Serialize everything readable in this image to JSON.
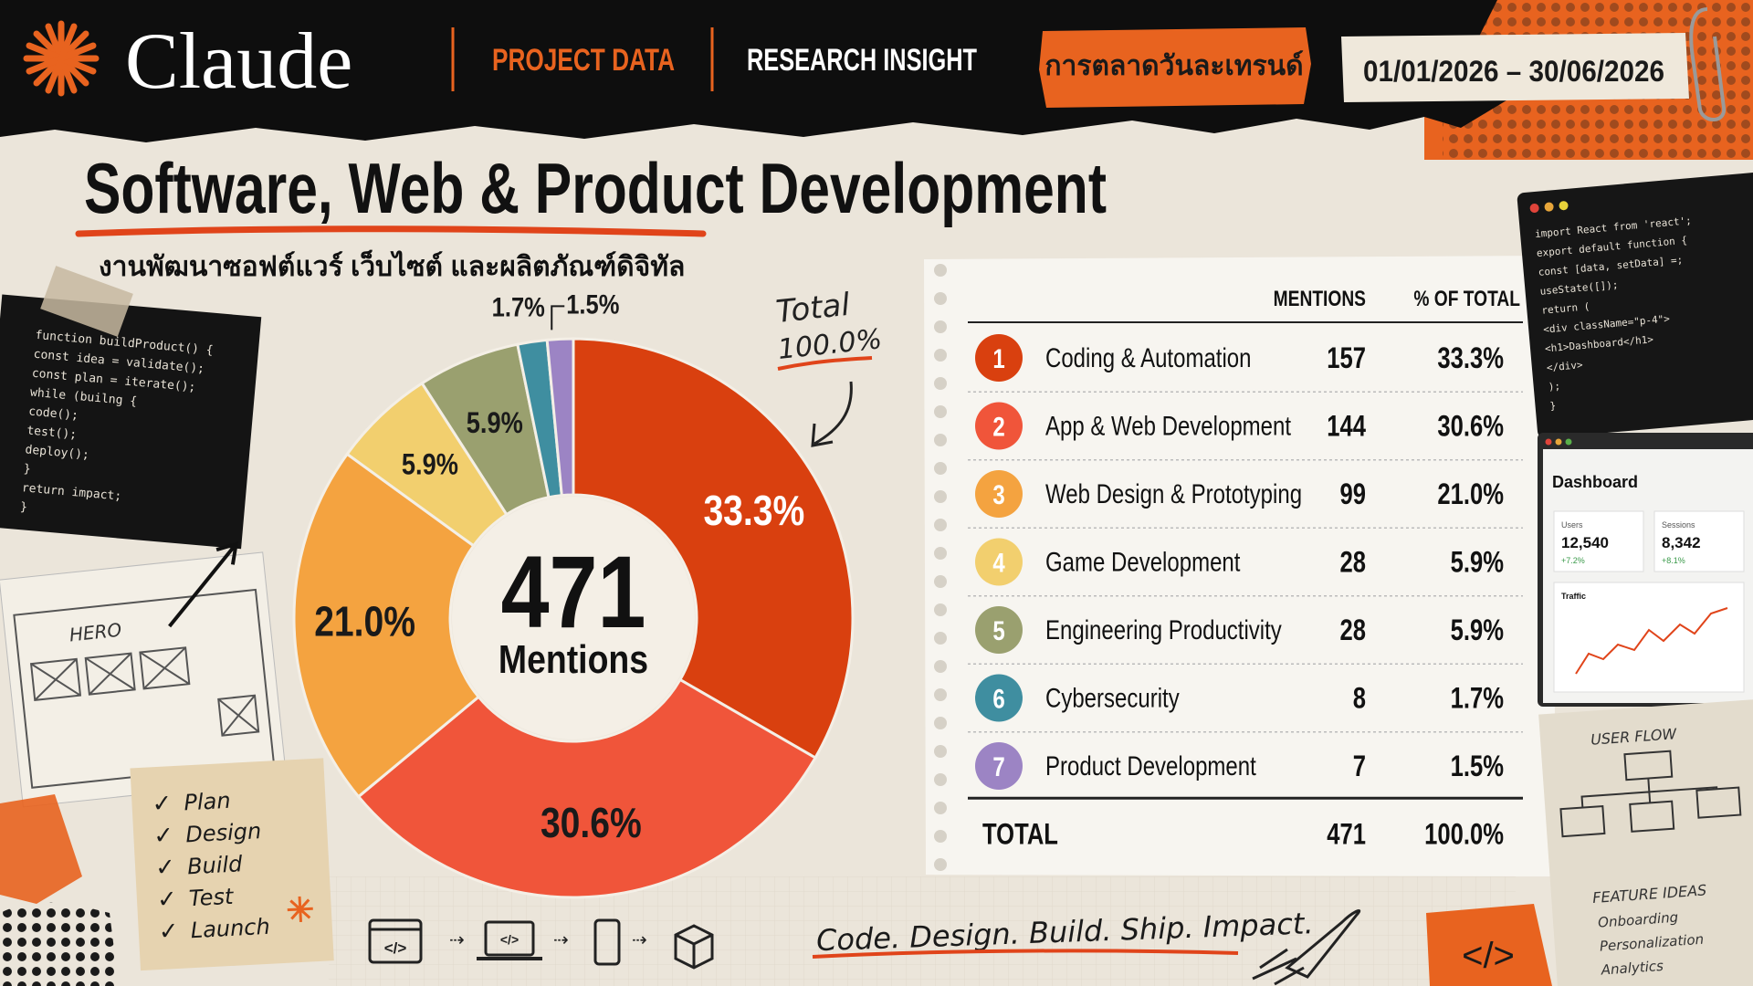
{
  "header": {
    "logo": "Claude",
    "nav": [
      "PROJECT DATA",
      "RESEARCH INSIGHT"
    ],
    "tag": "การตลาดวันละเทรนด์",
    "date_range": "01/01/2026 – 30/06/2026"
  },
  "title": "Software, Web & Product Development",
  "subtitle": "งานพัฒนาซอฟต์แวร์ เว็บไซต์ และผลิตภัณฑ์ดิจิทัล",
  "chart_data": {
    "type": "donut",
    "categories": [
      "Coding & Automation",
      "App & Web Development",
      "Web Design & Prototyping",
      "Game Development",
      "Engineering Productivity",
      "Cybersecurity",
      "Product Development"
    ],
    "values": [
      33.3,
      30.6,
      21.0,
      5.9,
      5.9,
      1.7,
      1.5
    ],
    "value_labels": [
      "33.3%",
      "30.6%",
      "21.0%",
      "5.9%",
      "5.9%",
      "1.7%",
      "1.5%"
    ],
    "colors": [
      "#d9400f",
      "#f0553a",
      "#f4a340",
      "#f2cf6e",
      "#9aa06f",
      "#3f8ea0",
      "#9c84c4"
    ],
    "center_value": 471,
    "center_label": "Mentions",
    "annotation": [
      "Total",
      "100.0%"
    ]
  },
  "table": {
    "columns": [
      "MENTIONS",
      "% OF TOTAL"
    ],
    "ranks": [
      "1",
      "2",
      "3",
      "4",
      "5",
      "6",
      "7"
    ],
    "mentions": [
      157,
      144,
      99,
      28,
      28,
      8,
      7
    ],
    "total": {
      "label": "TOTAL",
      "mentions": 471,
      "percent": "100.0%"
    }
  },
  "decor": {
    "code_left": [
      "function buildProduct() {",
      "  const idea = validate();",
      "  const plan = iterate();",
      "  while (builng {",
      "    code();",
      "    test();",
      "    deploy();",
      "  }",
      "  return impact;",
      "}"
    ],
    "code_right": [
      "import React from 'react';",
      "export default function {",
      "  const [data, setData] =;",
      "  useState([]);",
      "  return (",
      "    <div className=\"p-4\">",
      "      <h1>Dashboard</h1>",
      "    </div>",
      "  );",
      "}"
    ],
    "wireframe": "HERO",
    "checklist": [
      "Plan",
      "Design",
      "Build",
      "Test",
      "Launch"
    ],
    "dashboard": {
      "title": "Dashboard",
      "metrics": [
        {
          "label": "Users",
          "value": "12,540",
          "change": "+7.2%"
        },
        {
          "label": "Sessions",
          "value": "8,342",
          "change": "+8.1%"
        }
      ],
      "traffic": "Traffic"
    },
    "user_flow": "USER FLOW",
    "feature_ideas": {
      "title": "FEATURE IDEAS",
      "items": [
        "Onboarding",
        "Personalization",
        "Analytics"
      ]
    },
    "tagline": "Code. Design. Build. Ship. Impact.",
    "code_icon": "</>"
  }
}
